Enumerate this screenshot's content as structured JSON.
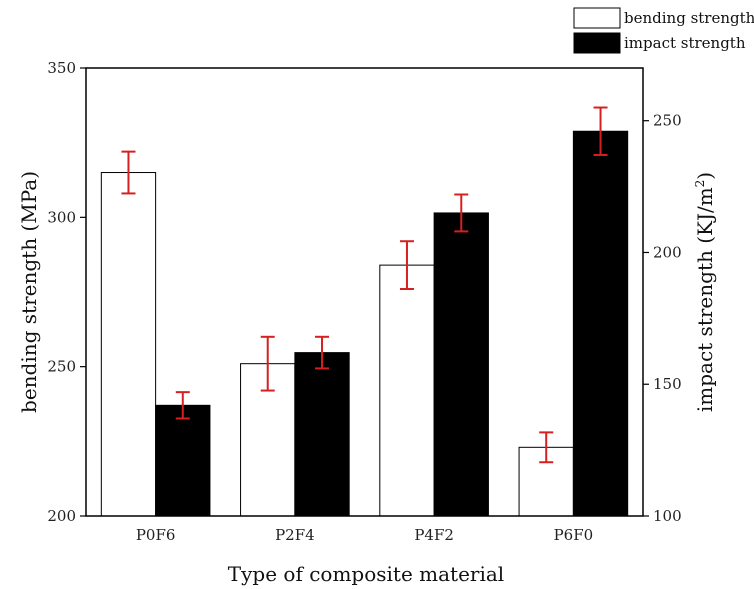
{
  "chart_data": {
    "type": "bar",
    "categories": [
      "P0F6",
      "P2F4",
      "P4F2",
      "P6F0"
    ],
    "series": [
      {
        "name": "bending strength",
        "axis": "left",
        "values": [
          315,
          251,
          284,
          223
        ],
        "errors": [
          7,
          9,
          8,
          5
        ],
        "fill": "#ffffff",
        "stroke": "#000000"
      },
      {
        "name": "impact strength",
        "axis": "right",
        "values": [
          142,
          162,
          215,
          246
        ],
        "errors": [
          5,
          6,
          7,
          9
        ],
        "fill": "#000000",
        "stroke": "#000000"
      }
    ],
    "xlabel": "Type of composite material",
    "ylabel": "bending strength (MPa)",
    "y2label_main": "impact strength (KJ/m",
    "y2label_sup": "2",
    "y2label_close": ")",
    "ylim": [
      200,
      350
    ],
    "y2lim": [
      100,
      270
    ],
    "yticks": [
      "200",
      "250",
      "300",
      "350"
    ],
    "y2ticks": [
      "100",
      "150",
      "200",
      "250"
    ],
    "legend_position": "top-right",
    "error_bar_color": "#d62020",
    "grid": false
  }
}
